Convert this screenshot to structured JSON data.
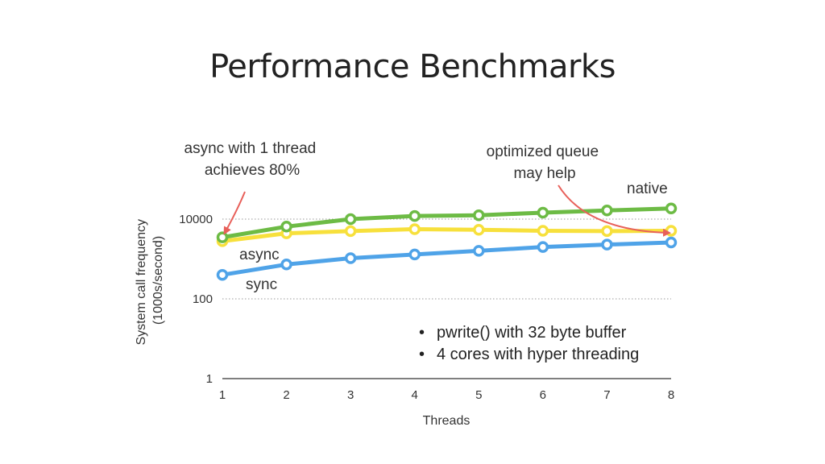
{
  "slide": {
    "title": "Performance Benchmarks"
  },
  "chart_data": {
    "type": "line",
    "xlabel": "Threads",
    "ylabel_lines": [
      "System call frequency",
      "(1000s/second)"
    ],
    "yscale": "log",
    "ylim": [
      1,
      30000
    ],
    "xlim": [
      1,
      8
    ],
    "x": [
      1,
      2,
      3,
      4,
      5,
      6,
      7,
      8
    ],
    "x_ticks": [
      1,
      2,
      3,
      4,
      5,
      6,
      7,
      8
    ],
    "y_ticks": [
      {
        "value": 1,
        "label": "1"
      },
      {
        "value": 100,
        "label": "100"
      },
      {
        "value": 10000,
        "label": "10000"
      }
    ],
    "grid": "horizontal dotted",
    "series": [
      {
        "name": "native",
        "color": "#6dbb45",
        "values": [
          3500,
          6500,
          10000,
          12000,
          12500,
          14500,
          16500,
          18500
        ]
      },
      {
        "name": "async",
        "color": "#f7e03c",
        "values": [
          2800,
          4400,
          5000,
          5600,
          5400,
          5100,
          5000,
          5100
        ]
      },
      {
        "name": "sync",
        "color": "#4fa3e8",
        "values": [
          400,
          730,
          1050,
          1300,
          1600,
          2000,
          2300,
          2600
        ]
      }
    ],
    "annotations": [
      {
        "lines": [
          "async with 1 thread",
          "achieves 80%"
        ],
        "arrow_color": "#e8605a"
      },
      {
        "lines": [
          "optimized queue",
          "may help"
        ],
        "arrow_color": "#e8605a"
      }
    ],
    "notes": [
      "pwrite() with 32 byte buffer",
      "4 cores with hyper threading"
    ]
  }
}
